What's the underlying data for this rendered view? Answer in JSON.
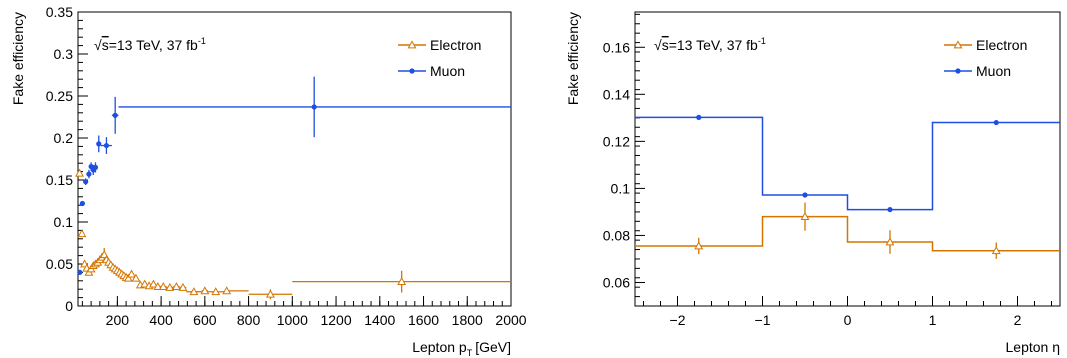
{
  "colors": {
    "electron": "#d47500",
    "muon": "#1f4fe0"
  },
  "chart_data": [
    {
      "type": "scatter",
      "xlabel_main": "Lepton p",
      "xlabel_sub": "T",
      "xlabel_unit": "[GeV]",
      "ylabel": "Fake efficiency",
      "xlim": [
        20,
        2000
      ],
      "ylim": [
        0,
        0.35
      ],
      "x_ticks": [
        200,
        400,
        600,
        800,
        1000,
        1200,
        1400,
        1600,
        1800,
        2000
      ],
      "y_ticks": [
        0,
        0.05,
        0.1,
        0.15,
        0.2,
        0.25,
        0.3,
        0.35
      ],
      "x_tick_labels": [
        "200",
        "400",
        "600",
        "800",
        "1000",
        "1200",
        "1400",
        "1600",
        "1800",
        "2000"
      ],
      "y_tick_labels": [
        "0",
        "0.05",
        "0.1",
        "0.15",
        "0.2",
        "0.25",
        "0.3",
        "0.35"
      ],
      "annotation": {
        "sqrt": "√",
        "s": "s",
        "text": "=13 TeV, 37 fb",
        "sup": "-1"
      },
      "legend": {
        "position": "top-right",
        "entries": [
          "Electron",
          "Muon"
        ]
      },
      "series": [
        {
          "name": "Electron",
          "marker": "open-triangle",
          "points": [
            {
              "x": 27,
              "xlo": 20,
              "xhi": 33,
              "y": 0.158,
              "yerr": 0.003
            },
            {
              "x": 38,
              "xlo": 33,
              "xhi": 43,
              "y": 0.086,
              "yerr": 0.003
            },
            {
              "x": 50,
              "xlo": 45,
              "xhi": 55,
              "y": 0.05,
              "yerr": 0.003
            },
            {
              "x": 60,
              "xlo": 55,
              "xhi": 65,
              "y": 0.045,
              "yerr": 0.002
            },
            {
              "x": 70,
              "xlo": 65,
              "xhi": 75,
              "y": 0.04,
              "yerr": 0.002
            },
            {
              "x": 80,
              "xlo": 75,
              "xhi": 85,
              "y": 0.044,
              "yerr": 0.002
            },
            {
              "x": 90,
              "xlo": 85,
              "xhi": 95,
              "y": 0.048,
              "yerr": 0.002
            },
            {
              "x": 100,
              "xlo": 95,
              "xhi": 105,
              "y": 0.05,
              "yerr": 0.002
            },
            {
              "x": 110,
              "xlo": 105,
              "xhi": 115,
              "y": 0.052,
              "yerr": 0.002
            },
            {
              "x": 120,
              "xlo": 115,
              "xhi": 125,
              "y": 0.055,
              "yerr": 0.002
            },
            {
              "x": 130,
              "xlo": 125,
              "xhi": 135,
              "y": 0.058,
              "yerr": 0.002
            },
            {
              "x": 140,
              "xlo": 135,
              "xhi": 145,
              "y": 0.061,
              "yerr": 0.008
            },
            {
              "x": 150,
              "xlo": 145,
              "xhi": 155,
              "y": 0.055,
              "yerr": 0.003
            },
            {
              "x": 160,
              "xlo": 155,
              "xhi": 165,
              "y": 0.052,
              "yerr": 0.003
            },
            {
              "x": 170,
              "xlo": 165,
              "xhi": 175,
              "y": 0.049,
              "yerr": 0.003
            },
            {
              "x": 180,
              "xlo": 175,
              "xhi": 185,
              "y": 0.046,
              "yerr": 0.003
            },
            {
              "x": 190,
              "xlo": 185,
              "xhi": 195,
              "y": 0.044,
              "yerr": 0.003
            },
            {
              "x": 200,
              "xlo": 195,
              "xhi": 205,
              "y": 0.042,
              "yerr": 0.003
            },
            {
              "x": 210,
              "xlo": 205,
              "xhi": 215,
              "y": 0.04,
              "yerr": 0.003
            },
            {
              "x": 220,
              "xlo": 215,
              "xhi": 225,
              "y": 0.038,
              "yerr": 0.003
            },
            {
              "x": 230,
              "xlo": 225,
              "xhi": 235,
              "y": 0.036,
              "yerr": 0.003
            },
            {
              "x": 240,
              "xlo": 235,
              "xhi": 245,
              "y": 0.034,
              "yerr": 0.003
            },
            {
              "x": 250,
              "xlo": 245,
              "xhi": 255,
              "y": 0.033,
              "yerr": 0.003
            },
            {
              "x": 265,
              "xlo": 255,
              "xhi": 275,
              "y": 0.038,
              "yerr": 0.003
            },
            {
              "x": 285,
              "xlo": 275,
              "xhi": 295,
              "y": 0.033,
              "yerr": 0.003
            },
            {
              "x": 305,
              "xlo": 295,
              "xhi": 315,
              "y": 0.025,
              "yerr": 0.003
            },
            {
              "x": 325,
              "xlo": 315,
              "xhi": 335,
              "y": 0.026,
              "yerr": 0.003
            },
            {
              "x": 345,
              "xlo": 335,
              "xhi": 355,
              "y": 0.024,
              "yerr": 0.003
            },
            {
              "x": 365,
              "xlo": 355,
              "xhi": 375,
              "y": 0.026,
              "yerr": 0.003
            },
            {
              "x": 385,
              "xlo": 375,
              "xhi": 395,
              "y": 0.023,
              "yerr": 0.003
            },
            {
              "x": 410,
              "xlo": 395,
              "xhi": 425,
              "y": 0.023,
              "yerr": 0.003
            },
            {
              "x": 440,
              "xlo": 425,
              "xhi": 455,
              "y": 0.022,
              "yerr": 0.003
            },
            {
              "x": 470,
              "xlo": 455,
              "xhi": 485,
              "y": 0.023,
              "yerr": 0.003
            },
            {
              "x": 500,
              "xlo": 485,
              "xhi": 515,
              "y": 0.022,
              "yerr": 0.003
            },
            {
              "x": 550,
              "xlo": 515,
              "xhi": 585,
              "y": 0.017,
              "yerr": 0.003
            },
            {
              "x": 600,
              "xlo": 585,
              "xhi": 615,
              "y": 0.018,
              "yerr": 0.003
            },
            {
              "x": 650,
              "xlo": 615,
              "xhi": 690,
              "y": 0.017,
              "yerr": 0.003
            },
            {
              "x": 700,
              "xlo": 690,
              "xhi": 800,
              "y": 0.018,
              "yerr": 0.003
            },
            {
              "x": 900,
              "xlo": 800,
              "xhi": 1000,
              "y": 0.014,
              "yerr": 0.006
            },
            {
              "x": 1500,
              "xlo": 1000,
              "xhi": 2000,
              "y": 0.029,
              "yerr": 0.013
            }
          ]
        },
        {
          "name": "Muon",
          "marker": "dot",
          "points": [
            {
              "x": 28,
              "xlo": 20,
              "xhi": 35,
              "y": 0.04,
              "yerr": 0.002
            },
            {
              "x": 40,
              "xlo": 35,
              "xhi": 45,
              "y": 0.122,
              "yerr": 0.003
            },
            {
              "x": 55,
              "xlo": 45,
              "xhi": 65,
              "y": 0.148,
              "yerr": 0.004
            },
            {
              "x": 70,
              "xlo": 65,
              "xhi": 75,
              "y": 0.157,
              "yerr": 0.005
            },
            {
              "x": 80,
              "xlo": 75,
              "xhi": 85,
              "y": 0.166,
              "yerr": 0.005
            },
            {
              "x": 90,
              "xlo": 85,
              "xhi": 95,
              "y": 0.162,
              "yerr": 0.006
            },
            {
              "x": 100,
              "xlo": 95,
              "xhi": 105,
              "y": 0.165,
              "yerr": 0.006
            },
            {
              "x": 115,
              "xlo": 105,
              "xhi": 125,
              "y": 0.193,
              "yerr": 0.01
            },
            {
              "x": 150,
              "xlo": 125,
              "xhi": 175,
              "y": 0.191,
              "yerr": 0.01
            },
            {
              "x": 190,
              "xlo": 175,
              "xhi": 205,
              "y": 0.227,
              "yerr": 0.022
            },
            {
              "x": 1100,
              "xlo": 205,
              "xhi": 2000,
              "y": 0.237,
              "yerr": 0.036
            }
          ]
        }
      ]
    },
    {
      "type": "line",
      "xlabel": "Lepton η",
      "ylabel": "Fake efficiency",
      "xlim": [
        -2.5,
        2.5
      ],
      "ylim": [
        0.05,
        0.175
      ],
      "x_ticks": [
        -2,
        -1,
        0,
        1,
        2
      ],
      "y_ticks": [
        0.06,
        0.08,
        0.1,
        0.12,
        0.14,
        0.16
      ],
      "x_tick_labels": [
        "−2",
        "−1",
        "0",
        "1",
        "2"
      ],
      "y_tick_labels": [
        "0.06",
        "0.08",
        "0.1",
        "0.12",
        "0.14",
        "0.16"
      ],
      "annotation": {
        "sqrt": "√",
        "s": "s",
        "text": "=13 TeV, 37 fb",
        "sup": "-1"
      },
      "legend": {
        "position": "top-right",
        "entries": [
          "Electron",
          "Muon"
        ]
      },
      "series": [
        {
          "name": "Electron",
          "marker": "open-triangle",
          "points": [
            {
              "x": -1.75,
              "xlo": -2.5,
              "xhi": -1,
              "y": 0.0755,
              "yerr": 0.0035
            },
            {
              "x": -0.5,
              "xlo": -1,
              "xhi": 0,
              "y": 0.088,
              "yerr": 0.006
            },
            {
              "x": 0.5,
              "xlo": 0,
              "xhi": 1,
              "y": 0.0772,
              "yerr": 0.005
            },
            {
              "x": 1.75,
              "xlo": 1,
              "xhi": 2.5,
              "y": 0.0735,
              "yerr": 0.0035
            }
          ]
        },
        {
          "name": "Muon",
          "marker": "dot",
          "points": [
            {
              "x": -1.75,
              "xlo": -2.5,
              "xhi": -1,
              "y": 0.1302,
              "yerr": 0.001
            },
            {
              "x": -0.5,
              "xlo": -1,
              "xhi": 0,
              "y": 0.0972,
              "yerr": 0.0008
            },
            {
              "x": 0.5,
              "xlo": 0,
              "xhi": 1,
              "y": 0.091,
              "yerr": 0.0008
            },
            {
              "x": 1.75,
              "xlo": 1,
              "xhi": 2.5,
              "y": 0.128,
              "yerr": 0.001
            }
          ]
        }
      ]
    }
  ]
}
